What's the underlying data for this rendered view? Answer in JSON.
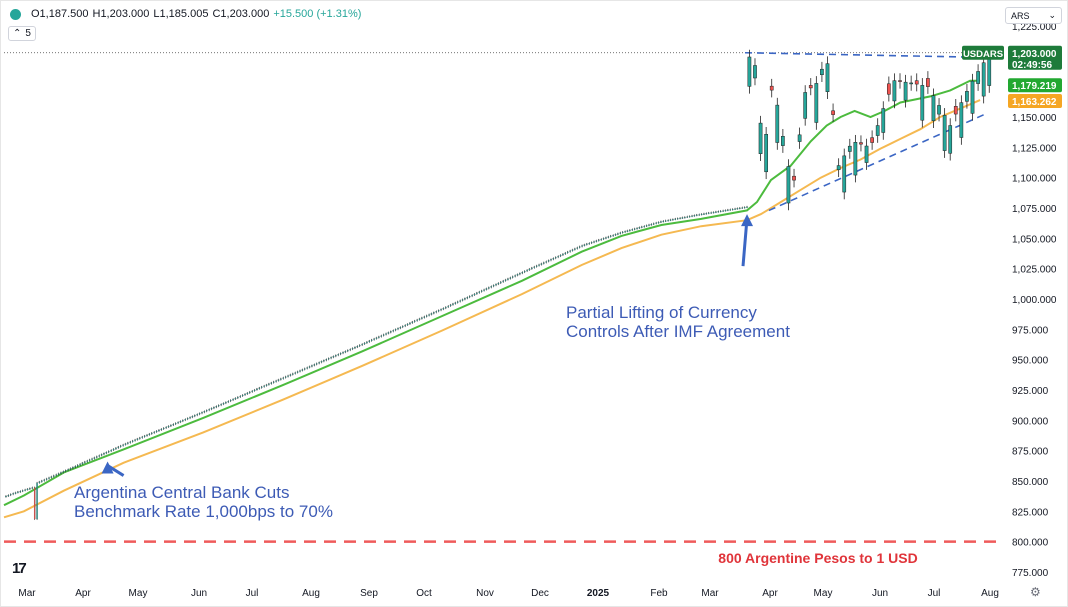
{
  "header": {
    "open": "O1,187.500",
    "high": "H1,203.000",
    "low": "L1,185.005",
    "close": "C1,203.000",
    "change": "+15.500 (+1.31%)",
    "interval": "5",
    "currency": "ARS"
  },
  "colors": {
    "up": "#26a69a",
    "down": "#ef5350",
    "ema_fast": "#4cbb3e",
    "ema_slow": "#f5b951",
    "trend": "#3b66c4",
    "support": "#ef5a5a",
    "annotation": "#3d5bb5",
    "support_label": "#e0343a"
  },
  "chart_data": {
    "type": "line",
    "symbol": "USDARS",
    "x_ticks": [
      "Mar",
      "Apr",
      "May",
      "Jun",
      "Jul",
      "Aug",
      "Sep",
      "Oct",
      "Nov",
      "Dec",
      "2025",
      "Feb",
      "Mar",
      "Apr",
      "May",
      "Jun",
      "Jul",
      "Aug"
    ],
    "y_ticks": [
      "1,225.000",
      "1,200.000",
      "1,175.000",
      "1,150.000",
      "1,125.000",
      "1,100.000",
      "1,075.000",
      "1,050.000",
      "1,025.000",
      "1,000.000",
      "975.000",
      "950.000",
      "925.000",
      "900.000",
      "875.000",
      "850.000",
      "825.000",
      "800.000",
      "775.000"
    ],
    "ylim": [
      770,
      1230
    ],
    "last_price": {
      "symbol": "USDARS",
      "value": "1,203.000",
      "countdown": "02:49:56"
    },
    "ema_fast_last": "1,179.219",
    "ema_slow_last": "1,163.262",
    "price_path": [
      [
        0,
        837
      ],
      [
        0.5,
        840
      ],
      [
        1.5,
        845
      ],
      [
        1.55,
        812
      ],
      [
        1.6,
        848
      ],
      [
        3,
        858
      ],
      [
        6,
        880
      ],
      [
        10,
        907
      ],
      [
        14,
        935
      ],
      [
        18,
        963
      ],
      [
        22,
        992
      ],
      [
        26,
        1022
      ],
      [
        29,
        1044
      ],
      [
        31,
        1055
      ],
      [
        33,
        1064
      ],
      [
        35,
        1070
      ],
      [
        37.3,
        1076
      ],
      [
        37.4,
        1200
      ],
      [
        37.8,
        1190
      ],
      [
        38.1,
        1115
      ],
      [
        38.6,
        1180
      ],
      [
        39.2,
        1125
      ],
      [
        39.6,
        1090
      ],
      [
        40.2,
        1170
      ],
      [
        40.8,
        1178
      ],
      [
        41.3,
        1200
      ],
      [
        41.9,
        1110
      ],
      [
        42.6,
        1130
      ],
      [
        43.5,
        1125
      ],
      [
        44.2,
        1160
      ],
      [
        44.7,
        1180
      ],
      [
        45.6,
        1178
      ],
      [
        46.4,
        1175
      ],
      [
        47.1,
        1155
      ],
      [
        47.5,
        1143
      ],
      [
        48.3,
        1170
      ],
      [
        48.8,
        1185
      ],
      [
        49.5,
        1203
      ]
    ],
    "ema_fast_path": [
      [
        0,
        830
      ],
      [
        1,
        838
      ],
      [
        3,
        857
      ],
      [
        6,
        876
      ],
      [
        10,
        902
      ],
      [
        14,
        929
      ],
      [
        18,
        957
      ],
      [
        22,
        986
      ],
      [
        26,
        1015
      ],
      [
        29,
        1039
      ],
      [
        31,
        1052
      ],
      [
        33,
        1061
      ],
      [
        35,
        1066
      ],
      [
        37.3,
        1073
      ],
      [
        37.8,
        1080
      ],
      [
        38.5,
        1098
      ],
      [
        39.5,
        1110
      ],
      [
        40.5,
        1130
      ],
      [
        41.3,
        1143
      ],
      [
        42,
        1150
      ],
      [
        42.7,
        1155
      ],
      [
        43.5,
        1150
      ],
      [
        44.2,
        1155
      ],
      [
        45,
        1162
      ],
      [
        46.5,
        1167
      ],
      [
        47.5,
        1172
      ],
      [
        48.5,
        1180
      ],
      [
        49,
        1180
      ]
    ],
    "ema_slow_path": [
      [
        0,
        820
      ],
      [
        1,
        825
      ],
      [
        3,
        842
      ],
      [
        6,
        865
      ],
      [
        10,
        890
      ],
      [
        14,
        917
      ],
      [
        18,
        945
      ],
      [
        22,
        974
      ],
      [
        26,
        1004
      ],
      [
        29,
        1028
      ],
      [
        31,
        1042
      ],
      [
        33,
        1053
      ],
      [
        35,
        1060
      ],
      [
        37.3,
        1065
      ],
      [
        38,
        1070
      ],
      [
        39,
        1080
      ],
      [
        40,
        1090
      ],
      [
        41,
        1100
      ],
      [
        42,
        1108
      ],
      [
        43,
        1115
      ],
      [
        44,
        1124
      ],
      [
        45,
        1132
      ],
      [
        46,
        1140
      ],
      [
        47,
        1150
      ],
      [
        48,
        1157
      ],
      [
        49,
        1164
      ]
    ],
    "trendline_upper": [
      [
        37.2,
        1203
      ],
      [
        49.8,
        1199
      ]
    ],
    "trendline_lower": [
      [
        38.4,
        1073
      ],
      [
        49.2,
        1152
      ]
    ],
    "support_line": 800,
    "annotations": [
      {
        "lines": [
          "Argentina Central Bank Cuts",
          "Benchmark Rate 1,000bps to 70%"
        ],
        "arrow_to": [
          5.2,
          866
        ]
      },
      {
        "lines": [
          "Partial Lifting of Currency",
          "Controls After IMF Agreement"
        ],
        "arrow_to": [
          37.3,
          1070
        ]
      }
    ],
    "support_label": "800 Argentine Pesos to 1 USD"
  }
}
